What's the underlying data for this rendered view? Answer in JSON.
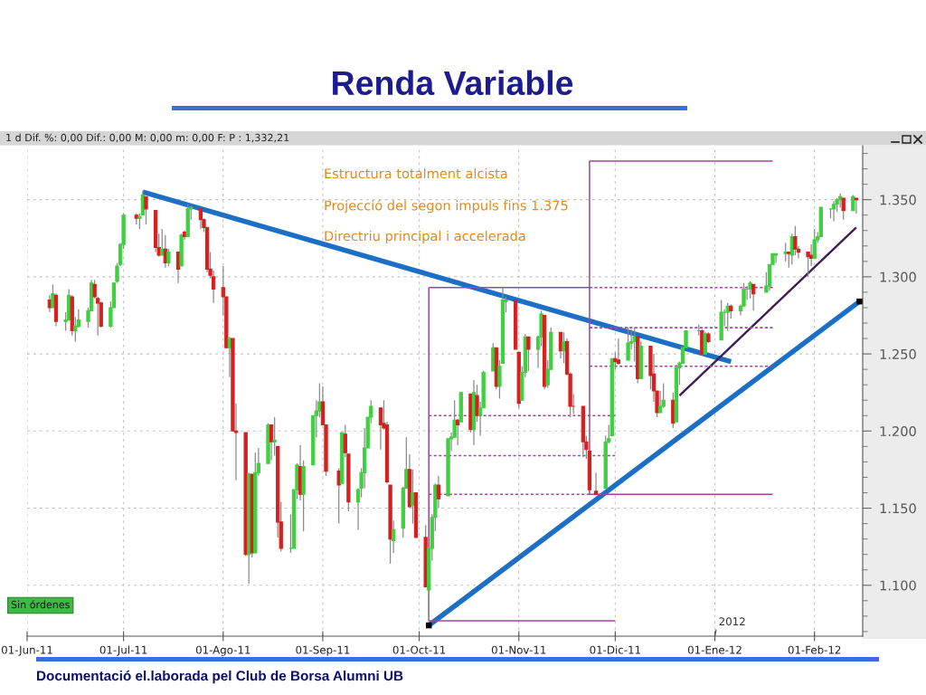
{
  "chart_data": {
    "type": "candlestick",
    "title": "Renda Variable",
    "x": [
      "2011-06-08",
      "2011-06-09",
      "2011-06-10",
      "2011-06-13",
      "2011-06-14",
      "2011-06-15",
      "2011-06-16",
      "2011-06-17",
      "2011-06-20",
      "2011-06-21",
      "2011-06-22",
      "2011-06-23",
      "2011-06-24",
      "2011-06-27",
      "2011-06-28",
      "2011-06-29",
      "2011-06-30",
      "2011-07-01",
      "2011-07-05",
      "2011-07-06",
      "2011-07-07",
      "2011-07-08",
      "2011-07-11",
      "2011-07-12",
      "2011-07-13",
      "2011-07-14",
      "2011-07-15",
      "2011-07-18",
      "2011-07-19",
      "2011-07-20",
      "2011-07-21",
      "2011-07-22",
      "2011-07-25",
      "2011-07-26",
      "2011-07-27",
      "2011-07-28",
      "2011-07-29",
      "2011-08-01",
      "2011-08-02",
      "2011-08-03",
      "2011-08-04",
      "2011-08-05",
      "2011-08-08",
      "2011-08-09",
      "2011-08-10",
      "2011-08-11",
      "2011-08-12",
      "2011-08-15",
      "2011-08-16",
      "2011-08-17",
      "2011-08-18",
      "2011-08-19",
      "2011-08-22",
      "2011-08-23",
      "2011-08-24",
      "2011-08-25",
      "2011-08-26",
      "2011-08-29",
      "2011-08-30",
      "2011-08-31",
      "2011-09-01",
      "2011-09-02",
      "2011-09-06",
      "2011-09-07",
      "2011-09-08",
      "2011-09-09",
      "2011-09-12",
      "2011-09-13",
      "2011-09-14",
      "2011-09-15",
      "2011-09-16",
      "2011-09-19",
      "2011-09-20",
      "2011-09-21",
      "2011-09-22",
      "2011-09-23",
      "2011-09-26",
      "2011-09-27",
      "2011-09-28",
      "2011-09-29",
      "2011-09-30",
      "2011-10-03",
      "2011-10-04",
      "2011-10-05",
      "2011-10-06",
      "2011-10-07",
      "2011-10-10",
      "2011-10-11",
      "2011-10-12",
      "2011-10-13",
      "2011-10-14",
      "2011-10-17",
      "2011-10-18",
      "2011-10-19",
      "2011-10-20",
      "2011-10-21",
      "2011-10-24",
      "2011-10-25",
      "2011-10-26",
      "2011-10-27",
      "2011-10-28",
      "2011-10-31",
      "2011-11-01",
      "2011-11-02",
      "2011-11-03",
      "2011-11-04",
      "2011-11-07",
      "2011-11-08",
      "2011-11-09",
      "2011-11-10",
      "2011-11-11",
      "2011-11-14",
      "2011-11-15",
      "2011-11-16",
      "2011-11-17",
      "2011-11-18",
      "2011-11-21",
      "2011-11-22",
      "2011-11-23",
      "2011-11-25",
      "2011-11-28",
      "2011-11-29",
      "2011-11-30",
      "2011-12-01",
      "2011-12-02",
      "2011-12-05",
      "2011-12-06",
      "2011-12-07",
      "2011-12-08",
      "2011-12-09",
      "2011-12-12",
      "2011-12-13",
      "2011-12-14",
      "2011-12-15",
      "2011-12-16",
      "2011-12-19",
      "2011-12-20",
      "2011-12-21",
      "2011-12-22",
      "2011-12-23",
      "2011-12-27",
      "2011-12-28",
      "2011-12-29",
      "2011-12-30",
      "2012-01-03",
      "2012-01-04",
      "2012-01-05",
      "2012-01-06",
      "2012-01-09",
      "2012-01-10",
      "2012-01-11",
      "2012-01-12",
      "2012-01-13",
      "2012-01-17",
      "2012-01-18",
      "2012-01-19",
      "2012-01-20",
      "2012-01-23",
      "2012-01-24",
      "2012-01-25",
      "2012-01-26",
      "2012-01-27",
      "2012-01-30",
      "2012-01-31",
      "2012-02-01",
      "2012-02-02",
      "2012-02-03",
      "2012-02-06",
      "2012-02-07",
      "2012-02-08",
      "2012-02-09",
      "2012-02-10",
      "2012-02-13",
      "2012-02-14"
    ],
    "ohlc": [
      [
        1.285,
        1.288,
        1.277,
        1.28
      ],
      [
        1.28,
        1.295,
        1.28,
        1.289
      ],
      [
        1.288,
        1.289,
        1.268,
        1.271
      ],
      [
        1.271,
        1.277,
        1.265,
        1.272
      ],
      [
        1.272,
        1.292,
        1.272,
        1.288
      ],
      [
        1.287,
        1.288,
        1.262,
        1.265
      ],
      [
        1.265,
        1.274,
        1.258,
        1.268
      ],
      [
        1.268,
        1.279,
        1.267,
        1.272
      ],
      [
        1.271,
        1.28,
        1.267,
        1.278
      ],
      [
        1.278,
        1.298,
        1.278,
        1.296
      ],
      [
        1.295,
        1.298,
        1.286,
        1.287
      ],
      [
        1.286,
        1.287,
        1.262,
        1.283
      ],
      [
        1.283,
        1.284,
        1.267,
        1.268
      ],
      [
        1.268,
        1.284,
        1.267,
        1.28
      ],
      [
        1.28,
        1.296,
        1.28,
        1.296
      ],
      [
        1.297,
        1.309,
        1.296,
        1.307
      ],
      [
        1.308,
        1.322,
        1.307,
        1.321
      ],
      [
        1.321,
        1.341,
        1.318,
        1.34
      ],
      [
        1.34,
        1.341,
        1.334,
        1.338
      ],
      [
        1.338,
        1.341,
        1.331,
        1.339
      ],
      [
        1.34,
        1.356,
        1.34,
        1.353
      ],
      [
        1.352,
        1.352,
        1.334,
        1.344
      ],
      [
        1.343,
        1.343,
        1.316,
        1.319
      ],
      [
        1.319,
        1.328,
        1.313,
        1.314
      ],
      [
        1.314,
        1.331,
        1.314,
        1.318
      ],
      [
        1.318,
        1.327,
        1.306,
        1.309
      ],
      [
        1.309,
        1.318,
        1.307,
        1.316
      ],
      [
        1.316,
        1.316,
        1.296,
        1.305
      ],
      [
        1.307,
        1.328,
        1.307,
        1.327
      ],
      [
        1.329,
        1.33,
        1.324,
        1.326
      ],
      [
        1.326,
        1.347,
        1.326,
        1.344
      ],
      [
        1.344,
        1.346,
        1.337,
        1.345
      ],
      [
        1.344,
        1.344,
        1.331,
        1.337
      ],
      [
        1.337,
        1.338,
        1.329,
        1.332
      ],
      [
        1.332,
        1.332,
        1.303,
        1.305
      ],
      [
        1.305,
        1.316,
        1.299,
        1.301
      ],
      [
        1.3,
        1.304,
        1.283,
        1.292
      ],
      [
        1.293,
        1.307,
        1.275,
        1.287
      ],
      [
        1.287,
        1.287,
        1.254,
        1.254
      ],
      [
        1.254,
        1.261,
        1.235,
        1.26
      ],
      [
        1.26,
        1.26,
        1.2,
        1.2
      ],
      [
        1.2,
        1.218,
        1.168,
        1.199
      ],
      [
        1.199,
        1.199,
        1.119,
        1.12
      ],
      [
        1.12,
        1.173,
        1.101,
        1.172
      ],
      [
        1.172,
        1.172,
        1.118,
        1.121
      ],
      [
        1.121,
        1.186,
        1.121,
        1.173
      ],
      [
        1.173,
        1.189,
        1.171,
        1.179
      ],
      [
        1.179,
        1.205,
        1.179,
        1.204
      ],
      [
        1.204,
        1.204,
        1.181,
        1.193
      ],
      [
        1.193,
        1.209,
        1.184,
        1.194
      ],
      [
        1.19,
        1.19,
        1.131,
        1.141
      ],
      [
        1.141,
        1.154,
        1.122,
        1.124
      ],
      [
        1.124,
        1.146,
        1.121,
        1.124
      ],
      [
        1.124,
        1.162,
        1.124,
        1.162
      ],
      [
        1.162,
        1.179,
        1.156,
        1.178
      ],
      [
        1.177,
        1.191,
        1.155,
        1.159
      ],
      [
        1.159,
        1.181,
        1.135,
        1.177
      ],
      [
        1.178,
        1.21,
        1.178,
        1.21
      ],
      [
        1.21,
        1.22,
        1.196,
        1.213
      ],
      [
        1.213,
        1.231,
        1.209,
        1.219
      ],
      [
        1.219,
        1.229,
        1.204,
        1.204
      ],
      [
        1.204,
        1.204,
        1.171,
        1.174
      ],
      [
        1.174,
        1.176,
        1.14,
        1.165
      ],
      [
        1.166,
        1.199,
        1.166,
        1.199
      ],
      [
        1.198,
        1.204,
        1.183,
        1.186
      ],
      [
        1.185,
        1.185,
        1.148,
        1.154
      ],
      [
        1.154,
        1.163,
        1.136,
        1.162
      ],
      [
        1.163,
        1.176,
        1.157,
        1.173
      ],
      [
        1.173,
        1.202,
        1.163,
        1.189
      ],
      [
        1.189,
        1.209,
        1.189,
        1.209
      ],
      [
        1.209,
        1.22,
        1.205,
        1.216
      ],
      [
        1.215,
        1.215,
        1.188,
        1.204
      ],
      [
        1.205,
        1.22,
        1.201,
        1.202
      ],
      [
        1.204,
        1.206,
        1.166,
        1.167
      ],
      [
        1.165,
        1.165,
        1.114,
        1.13
      ],
      [
        1.129,
        1.142,
        1.121,
        1.136
      ],
      [
        1.137,
        1.164,
        1.131,
        1.163
      ],
      [
        1.163,
        1.196,
        1.163,
        1.175
      ],
      [
        1.175,
        1.185,
        1.15,
        1.151
      ],
      [
        1.152,
        1.175,
        1.14,
        1.16
      ],
      [
        1.16,
        1.16,
        1.131,
        1.131
      ],
      [
        1.131,
        1.139,
        1.099,
        1.099
      ],
      [
        1.097,
        1.125,
        1.075,
        1.124
      ],
      [
        1.124,
        1.146,
        1.116,
        1.144
      ],
      [
        1.144,
        1.166,
        1.135,
        1.165
      ],
      [
        1.165,
        1.171,
        1.15,
        1.156
      ],
      [
        1.158,
        1.195,
        1.158,
        1.195
      ],
      [
        1.195,
        1.199,
        1.187,
        1.196
      ],
      [
        1.196,
        1.22,
        1.196,
        1.207
      ],
      [
        1.207,
        1.208,
        1.191,
        1.204
      ],
      [
        1.206,
        1.225,
        1.206,
        1.225
      ],
      [
        1.224,
        1.224,
        1.199,
        1.201
      ],
      [
        1.201,
        1.233,
        1.191,
        1.225
      ],
      [
        1.223,
        1.23,
        1.206,
        1.21
      ],
      [
        1.21,
        1.219,
        1.197,
        1.215
      ],
      [
        1.215,
        1.239,
        1.215,
        1.238
      ],
      [
        1.239,
        1.257,
        1.239,
        1.254
      ],
      [
        1.254,
        1.254,
        1.227,
        1.229
      ],
      [
        1.229,
        1.246,
        1.221,
        1.242
      ],
      [
        1.244,
        1.293,
        1.244,
        1.285
      ],
      [
        1.284,
        1.287,
        1.277,
        1.285
      ],
      [
        1.285,
        1.285,
        1.253,
        1.253
      ],
      [
        1.251,
        1.251,
        1.215,
        1.218
      ],
      [
        1.22,
        1.242,
        1.22,
        1.238
      ],
      [
        1.238,
        1.263,
        1.235,
        1.261
      ],
      [
        1.261,
        1.261,
        1.239,
        1.253
      ],
      [
        1.253,
        1.262,
        1.241,
        1.261
      ],
      [
        1.261,
        1.278,
        1.255,
        1.276
      ],
      [
        1.275,
        1.275,
        1.227,
        1.229
      ],
      [
        1.23,
        1.246,
        1.228,
        1.24
      ],
      [
        1.24,
        1.267,
        1.24,
        1.264
      ],
      [
        1.264,
        1.264,
        1.247,
        1.252
      ],
      [
        1.252,
        1.264,
        1.244,
        1.258
      ],
      [
        1.258,
        1.26,
        1.236,
        1.237
      ],
      [
        1.237,
        1.238,
        1.209,
        1.216
      ],
      [
        1.216,
        1.224,
        1.211,
        1.216
      ],
      [
        1.216,
        1.216,
        1.183,
        1.193
      ],
      [
        1.193,
        1.197,
        1.182,
        1.188
      ],
      [
        1.187,
        1.187,
        1.162,
        1.162
      ],
      [
        1.161,
        1.173,
        1.159,
        1.159
      ],
      [
        1.163,
        1.197,
        1.163,
        1.193
      ],
      [
        1.193,
        1.204,
        1.192,
        1.195
      ],
      [
        1.197,
        1.247,
        1.197,
        1.247
      ],
      [
        1.247,
        1.251,
        1.24,
        1.245
      ],
      [
        1.246,
        1.26,
        1.243,
        1.244
      ],
      [
        1.246,
        1.267,
        1.246,
        1.257
      ],
      [
        1.257,
        1.266,
        1.253,
        1.258
      ],
      [
        1.258,
        1.267,
        1.245,
        1.261
      ],
      [
        1.261,
        1.261,
        1.231,
        1.234
      ],
      [
        1.234,
        1.258,
        1.234,
        1.255
      ],
      [
        1.255,
        1.255,
        1.227,
        1.236
      ],
      [
        1.237,
        1.25,
        1.219,
        1.226
      ],
      [
        1.226,
        1.226,
        1.209,
        1.212
      ],
      [
        1.212,
        1.226,
        1.212,
        1.216
      ],
      [
        1.216,
        1.231,
        1.215,
        1.22
      ],
      [
        1.22,
        1.225,
        1.202,
        1.205
      ],
      [
        1.206,
        1.243,
        1.206,
        1.241
      ],
      [
        1.241,
        1.245,
        1.23,
        1.244
      ],
      [
        1.244,
        1.255,
        1.244,
        1.254
      ],
      [
        1.254,
        1.265,
        1.254,
        1.265
      ],
      [
        1.265,
        1.269,
        1.262,
        1.265
      ],
      [
        1.265,
        1.266,
        1.249,
        1.25
      ],
      [
        1.25,
        1.264,
        1.25,
        1.263
      ],
      [
        1.263,
        1.264,
        1.257,
        1.258
      ],
      [
        1.259,
        1.285,
        1.259,
        1.277
      ],
      [
        1.277,
        1.279,
        1.268,
        1.277
      ],
      [
        1.277,
        1.283,
        1.265,
        1.281
      ],
      [
        1.281,
        1.282,
        1.273,
        1.278
      ],
      [
        1.278,
        1.282,
        1.275,
        1.281
      ],
      [
        1.281,
        1.296,
        1.281,
        1.292
      ],
      [
        1.292,
        1.294,
        1.285,
        1.292
      ],
      [
        1.292,
        1.297,
        1.286,
        1.296
      ],
      [
        1.295,
        1.295,
        1.278,
        1.289
      ],
      [
        1.29,
        1.303,
        1.29,
        1.294
      ],
      [
        1.294,
        1.308,
        1.291,
        1.308
      ],
      [
        1.308,
        1.315,
        1.308,
        1.315
      ],
      [
        1.314,
        1.315,
        1.309,
        1.315
      ],
      [
        1.315,
        1.322,
        1.31,
        1.316
      ],
      [
        1.316,
        1.316,
        1.306,
        1.315
      ],
      [
        1.314,
        1.328,
        1.308,
        1.326
      ],
      [
        1.326,
        1.333,
        1.314,
        1.318
      ],
      [
        1.318,
        1.32,
        1.312,
        1.316
      ],
      [
        1.316,
        1.316,
        1.3,
        1.313
      ],
      [
        1.314,
        1.321,
        1.307,
        1.312
      ],
      [
        1.312,
        1.331,
        1.312,
        1.324
      ],
      [
        1.324,
        1.329,
        1.322,
        1.326
      ],
      [
        1.326,
        1.345,
        1.326,
        1.345
      ],
      [
        1.344,
        1.344,
        1.338,
        1.344
      ],
      [
        1.344,
        1.349,
        1.336,
        1.347
      ],
      [
        1.347,
        1.351,
        1.342,
        1.35
      ],
      [
        1.35,
        1.354,
        1.345,
        1.352
      ],
      [
        1.351,
        1.351,
        1.337,
        1.343
      ],
      [
        1.343,
        1.353,
        1.343,
        1.352
      ],
      [
        1.351,
        1.351,
        1.341,
        1.35
      ]
    ],
    "colors": [
      "#d62020",
      "#3fcf3f",
      "#d62020",
      "#3fcf3f",
      "#3fcf3f",
      "#d62020",
      "#3fcf3f",
      "#3fcf3f",
      "#3fcf3f",
      "#3fcf3f",
      "#d62020",
      "#d62020",
      "#d62020",
      "#3fcf3f",
      "#3fcf3f",
      "#3fcf3f",
      "#3fcf3f",
      "#3fcf3f",
      "#d62020",
      "#3fcf3f",
      "#3fcf3f",
      "#d62020",
      "#d62020",
      "#d62020",
      "#3fcf3f",
      "#d62020",
      "#3fcf3f",
      "#d62020",
      "#3fcf3f",
      "#d62020",
      "#3fcf3f",
      "#3fcf3f",
      "#d62020",
      "#d62020",
      "#d62020",
      "#d62020",
      "#d62020",
      "#d62020",
      "#d62020",
      "#3fcf3f",
      "#d62020",
      "#d62020",
      "#d62020",
      "#3fcf3f",
      "#d62020",
      "#3fcf3f",
      "#3fcf3f",
      "#3fcf3f",
      "#d62020",
      "#3fcf3f",
      "#d62020",
      "#d62020",
      "#3fcf3f",
      "#3fcf3f",
      "#3fcf3f",
      "#d62020",
      "#3fcf3f",
      "#3fcf3f",
      "#3fcf3f",
      "#3fcf3f",
      "#d62020",
      "#d62020",
      "#d62020",
      "#3fcf3f",
      "#d62020",
      "#d62020",
      "#3fcf3f",
      "#3fcf3f",
      "#3fcf3f",
      "#3fcf3f",
      "#3fcf3f",
      "#d62020",
      "#d62020",
      "#d62020",
      "#d62020",
      "#3fcf3f",
      "#3fcf3f",
      "#3fcf3f",
      "#d62020",
      "#3fcf3f",
      "#d62020",
      "#d62020",
      "#3fcf3f",
      "#3fcf3f",
      "#3fcf3f",
      "#d62020",
      "#3fcf3f",
      "#3fcf3f",
      "#3fcf3f",
      "#d62020",
      "#3fcf3f",
      "#d62020",
      "#3fcf3f",
      "#d62020",
      "#3fcf3f",
      "#3fcf3f",
      "#3fcf3f",
      "#d62020",
      "#3fcf3f",
      "#3fcf3f",
      "#3fcf3f",
      "#d62020",
      "#d62020",
      "#3fcf3f",
      "#3fcf3f",
      "#d62020",
      "#3fcf3f",
      "#3fcf3f",
      "#d62020",
      "#3fcf3f",
      "#3fcf3f",
      "#d62020",
      "#3fcf3f",
      "#d62020",
      "#d62020",
      "#d62020",
      "#d62020",
      "#d62020",
      "#d62020",
      "#d62020",
      "#3fcf3f",
      "#3fcf3f",
      "#3fcf3f",
      "#d62020",
      "#d62020",
      "#3fcf3f",
      "#3fcf3f",
      "#3fcf3f",
      "#d62020",
      "#3fcf3f",
      "#d62020",
      "#d62020",
      "#d62020",
      "#3fcf3f",
      "#3fcf3f",
      "#d62020",
      "#3fcf3f",
      "#3fcf3f",
      "#3fcf3f",
      "#3fcf3f",
      "#3fcf3f",
      "#d62020",
      "#3fcf3f",
      "#d62020",
      "#3fcf3f",
      "#3fcf3f",
      "#3fcf3f",
      "#d62020",
      "#3fcf3f",
      "#3fcf3f",
      "#3fcf3f",
      "#3fcf3f",
      "#d62020",
      "#3fcf3f",
      "#3fcf3f",
      "#3fcf3f",
      "#3fcf3f",
      "#3fcf3f",
      "#d62020",
      "#3fcf3f",
      "#d62020",
      "#d62020",
      "#d62020",
      "#d62020",
      "#3fcf3f",
      "#3fcf3f",
      "#3fcf3f",
      "#3fcf3f",
      "#3fcf3f",
      "#3fcf3f",
      "#3fcf3f",
      "#d62020",
      "#3fcf3f",
      "#d62020"
    ],
    "series": [
      {
        "type": "line",
        "color": "#1d6fc6",
        "line_style": "solid",
        "x": [
          "2011-07-07",
          "2012-01-06"
        ],
        "values": [
          1.355,
          1.245
        ]
      },
      {
        "type": "line",
        "color": "#1d6fc6",
        "line_style": "solid",
        "x": [
          "2011-10-04",
          "2012-02-15"
        ],
        "values": [
          1.074,
          1.284
        ]
      },
      {
        "type": "line",
        "color": "#3d1b57",
        "line_style": "solid",
        "x": [
          "2011-12-21",
          "2012-02-14"
        ],
        "values": [
          1.223,
          1.332
        ]
      },
      {
        "type": "line",
        "color": "#a0479b",
        "line_style": "solid",
        "x": [
          "2011-10-04",
          "2011-10-04"
        ],
        "values": [
          1.077,
          1.293
        ]
      },
      {
        "type": "line",
        "color": "#a0479b",
        "line_style": "solid",
        "x": [
          "2011-10-04",
          "2011-11-23"
        ],
        "values": [
          1.293,
          1.293
        ]
      },
      {
        "type": "line",
        "color": "#a0479b",
        "line_style": "solid",
        "x": [
          "2011-10-04",
          "2011-12-01"
        ],
        "values": [
          1.077,
          1.077
        ]
      },
      {
        "type": "line",
        "color": "#a0479b",
        "line_style": "dashed",
        "x": [
          "2011-10-04",
          "2011-12-01"
        ],
        "values": [
          1.21,
          1.21
        ]
      },
      {
        "type": "line",
        "color": "#a0479b",
        "line_style": "dashed",
        "x": [
          "2011-10-04",
          "2011-12-01"
        ],
        "values": [
          1.184,
          1.184
        ]
      },
      {
        "type": "line",
        "color": "#a0479b",
        "line_style": "dashed",
        "x": [
          "2011-10-04",
          "2011-11-23"
        ],
        "values": [
          1.159,
          1.159
        ]
      },
      {
        "type": "line",
        "color": "#a0479b",
        "line_style": "solid",
        "x": [
          "2011-11-23",
          "2011-11-23"
        ],
        "values": [
          1.159,
          1.375
        ]
      },
      {
        "type": "line",
        "color": "#a0479b",
        "line_style": "solid",
        "x": [
          "2011-11-23",
          "2012-01-19"
        ],
        "values": [
          1.375,
          1.375
        ]
      },
      {
        "type": "line",
        "color": "#a0479b",
        "line_style": "solid",
        "x": [
          "2011-11-23",
          "2012-01-19"
        ],
        "values": [
          1.159,
          1.159
        ]
      },
      {
        "type": "line",
        "color": "#a0479b",
        "line_style": "dashed",
        "x": [
          "2011-11-23",
          "2012-01-19"
        ],
        "values": [
          1.293,
          1.293
        ]
      },
      {
        "type": "line",
        "color": "#a0479b",
        "line_style": "dashed",
        "x": [
          "2011-11-23",
          "2012-01-19"
        ],
        "values": [
          1.267,
          1.267
        ]
      },
      {
        "type": "line",
        "color": "#a0479b",
        "line_style": "dashed",
        "x": [
          "2011-11-23",
          "2012-01-19"
        ],
        "values": [
          1.242,
          1.242
        ]
      },
      {
        "type": "scatter",
        "color": "#000000",
        "marker": "square",
        "x": [
          "2011-10-04",
          "2012-02-15"
        ],
        "values": [
          1.074,
          1.284
        ]
      }
    ],
    "xlim": [
      "2011-06-01",
      "2012-02-16"
    ],
    "xticks": [
      {
        "value": "2011-06-01",
        "label": "01-Jun-11"
      },
      {
        "value": "2011-07-01",
        "label": "01-Jul-11"
      },
      {
        "value": "2011-08-01",
        "label": "01-Ago-11"
      },
      {
        "value": "2011-09-01",
        "label": "01-Sep-11"
      },
      {
        "value": "2011-10-01",
        "label": "01-Oct-11"
      },
      {
        "value": "2011-11-01",
        "label": "01-Nov-11"
      },
      {
        "value": "2011-12-01",
        "label": "01-Dic-11"
      },
      {
        "value": "2012-01-01",
        "label": "01-Ene-12"
      },
      {
        "value": "2012-02-01",
        "label": "01-Feb-12"
      }
    ],
    "ylim": [
      1.067,
      1.385
    ],
    "yticks": [
      {
        "value": 1.07,
        "label": null
      },
      {
        "value": 1.08,
        "label": null
      },
      {
        "value": 1.09,
        "label": null
      },
      {
        "value": 1.1,
        "label": "1.100"
      },
      {
        "value": 1.11,
        "label": null
      },
      {
        "value": 1.12,
        "label": null
      },
      {
        "value": 1.13,
        "label": null
      },
      {
        "value": 1.14,
        "label": null
      },
      {
        "value": 1.15,
        "label": "1.150"
      },
      {
        "value": 1.16,
        "label": null
      },
      {
        "value": 1.17,
        "label": null
      },
      {
        "value": 1.18,
        "label": null
      },
      {
        "value": 1.19,
        "label": null
      },
      {
        "value": 1.2,
        "label": "1.200"
      },
      {
        "value": 1.21,
        "label": null
      },
      {
        "value": 1.22,
        "label": null
      },
      {
        "value": 1.23,
        "label": null
      },
      {
        "value": 1.24,
        "label": null
      },
      {
        "value": 1.25,
        "label": "1.250"
      },
      {
        "value": 1.26,
        "label": null
      },
      {
        "value": 1.27,
        "label": null
      },
      {
        "value": 1.28,
        "label": null
      },
      {
        "value": 1.29,
        "label": null
      },
      {
        "value": 1.3,
        "label": "1.300"
      },
      {
        "value": 1.31,
        "label": null
      },
      {
        "value": 1.32,
        "label": null
      },
      {
        "value": 1.33,
        "label": null
      },
      {
        "value": 1.34,
        "label": null
      },
      {
        "value": 1.35,
        "label": "1.350"
      },
      {
        "value": 1.36,
        "label": null
      },
      {
        "value": 1.37,
        "label": null
      },
      {
        "value": 1.38,
        "label": null
      }
    ],
    "grid": true,
    "annotations": [
      "Estructura totalment alcista",
      "Projecció del segon impuls fins 1.375",
      "Directriu principal i accelerada",
      "2012",
      "Sin órdenes",
      "1 d Dif. %: 0,00 Dif.: 0,00 M: 0,00 m: 0,00 F: P : 1,332,21",
      "Documentació el.laborada pel Club de Borsa Alumni UB"
    ]
  }
}
